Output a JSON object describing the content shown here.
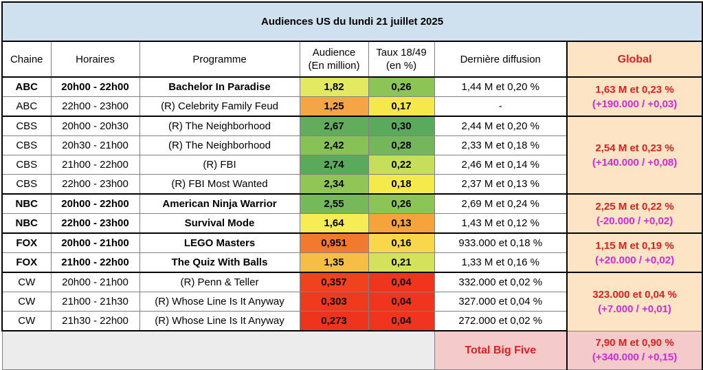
{
  "title": "Audiences US du lundi 21 juillet 2025",
  "headers": {
    "chaine": "Chaine",
    "horaires": "Horaires",
    "programme": "Programme",
    "audience_l1": "Audience",
    "audience_l2": "(En million)",
    "taux_l1": "Taux 18/49",
    "taux_l2": "(en %)",
    "derniere": "Dernière diffusion",
    "global": "Global"
  },
  "rows": [
    {
      "chaine": "ABC",
      "horaires": "20h00 - 22h00",
      "programme": "Bachelor In Paradise",
      "audience": "1,82",
      "taux": "0,26",
      "derniere": "1,44 M et 0,20 %",
      "bold": true,
      "audience_color": "#e3ea62",
      "taux_color": "#8cc456"
    },
    {
      "chaine": "ABC",
      "horaires": "22h00 - 23h00",
      "programme": "(R) Celebrity Family Feud",
      "audience": "1,25",
      "taux": "0,17",
      "derniere": "-",
      "bold": false,
      "audience_color": "#f5a545",
      "taux_color": "#f6e84a"
    },
    {
      "chaine": "CBS",
      "horaires": "20h00 - 20h30",
      "programme": "(R) The Neighborhood",
      "audience": "2,67",
      "taux": "0,30",
      "derniere": "2,44 M et 0,20 %",
      "bold": false,
      "audience_color": "#62ad5c",
      "taux_color": "#5aaa5c"
    },
    {
      "chaine": "CBS",
      "horaires": "20h30 - 21h00",
      "programme": "(R) The Neighborhood",
      "audience": "2,42",
      "taux": "0,28",
      "derniere": "2,33 M et 0,18 %",
      "bold": false,
      "audience_color": "#86c256",
      "taux_color": "#73b75a"
    },
    {
      "chaine": "CBS",
      "horaires": "21h00 - 22h00",
      "programme": "(R) FBI",
      "audience": "2,74",
      "taux": "0,22",
      "derniere": "2,46 M et 0,14 %",
      "bold": false,
      "audience_color": "#5aaa5c",
      "taux_color": "#c6de5a"
    },
    {
      "chaine": "CBS",
      "horaires": "22h00 - 23h00",
      "programme": "(R) FBI Most Wanted",
      "audience": "2,34",
      "taux": "0,18",
      "derniere": "2,37 M et 0,13 %",
      "bold": false,
      "audience_color": "#91c656",
      "taux_color": "#f4ea4c"
    },
    {
      "chaine": "NBC",
      "horaires": "20h00 - 22h00",
      "programme": "American Ninja Warrior",
      "audience": "2,55",
      "taux": "0,26",
      "derniere": "2,69 M et 0,24 %",
      "bold": true,
      "audience_color": "#75b95a",
      "taux_color": "#8cc456"
    },
    {
      "chaine": "NBC",
      "horaires": "22h00 - 23h00",
      "programme": "Survival Mode",
      "audience": "1,64",
      "taux": "0,13",
      "derniere": "1,43 M et 0,12 %",
      "bold": true,
      "audience_color": "#f6ec56",
      "taux_color": "#f6a33c"
    },
    {
      "chaine": "FOX",
      "horaires": "20h00 - 21h00",
      "programme": "LEGO Masters",
      "audience": "0,951",
      "taux": "0,16",
      "derniere": "933.000 et 0,18 %",
      "bold": true,
      "audience_color": "#f27a2e",
      "taux_color": "#f8d84a"
    },
    {
      "chaine": "FOX",
      "horaires": "21h00 - 22h00",
      "programme": "The Quiz With Balls",
      "audience": "1,35",
      "taux": "0,21",
      "derniere": "1,33 M et 0,16 %",
      "bold": true,
      "audience_color": "#f7be46",
      "taux_color": "#d3e25a"
    },
    {
      "chaine": "CW",
      "horaires": "20h00 - 21h00",
      "programme": "(R) Penn & Teller",
      "audience": "0,357",
      "taux": "0,04",
      "derniere": "332.000 et 0,02 %",
      "bold": false,
      "audience_color": "#f0421e",
      "taux_color": "#f0341e"
    },
    {
      "chaine": "CW",
      "horaires": "21h00 - 21h30",
      "programme": "(R) Whose Line Is It Anyway",
      "audience": "0,303",
      "taux": "0,04",
      "derniere": "327.000 et 0,04 %",
      "bold": false,
      "audience_color": "#ef3a1e",
      "taux_color": "#f0341e"
    },
    {
      "chaine": "CW",
      "horaires": "21h30 - 22h00",
      "programme": "(R) Whose Line Is It Anyway",
      "audience": "0,273",
      "taux": "0,04",
      "derniere": "272.000 et 0,02 %",
      "bold": false,
      "audience_color": "#ef341e",
      "taux_color": "#f0341e"
    }
  ],
  "globals": [
    {
      "network": "ABC",
      "line1": "1,63 M et 0,23 %",
      "line2": "(+190.000 / +0,03)"
    },
    {
      "network": "CBS",
      "line1": "2,54 M et 0,23 %",
      "line2": "(+140.000 / +0,08)"
    },
    {
      "network": "NBC",
      "line1": "2,25 M et 0,22 %",
      "line2": "(-20.000 / +0,02)"
    },
    {
      "network": "FOX",
      "line1": "1,15 M et 0,19 %",
      "line2": "(+20.000 / +0,02)"
    },
    {
      "network": "CW",
      "line1": "323.000 et 0,04 %",
      "line2": "(+7.000 / +0,01)"
    }
  ],
  "total": {
    "label": "Total Big Five",
    "line1": "7,90 M et 0,90 %",
    "line2": "(+340.000 / +0,15)"
  },
  "colors": {
    "title_bg": "#cfe0ee",
    "global_bg": "#fce4c4",
    "total_bg": "#f5caca",
    "accent_red": "#e02020",
    "accent_magenta": "#d42ad4"
  }
}
